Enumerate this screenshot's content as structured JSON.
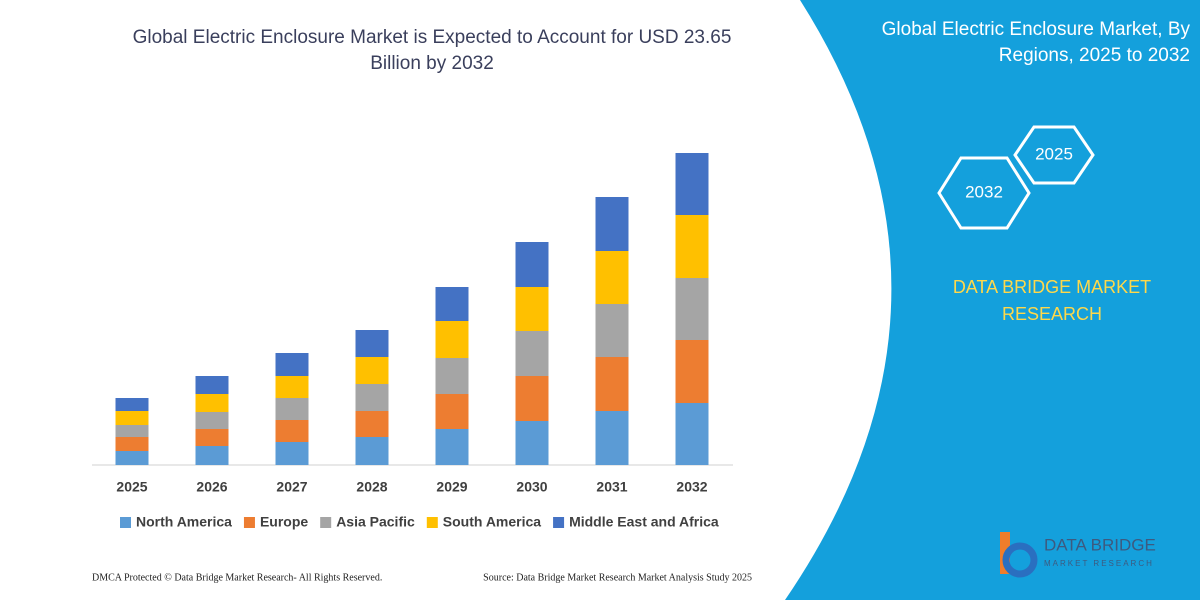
{
  "chart_data": {
    "type": "bar",
    "stacked": true,
    "title": [
      "Global Electric Enclosure Market is Expected to Account for USD 23.65",
      "Billion by 2032"
    ],
    "categories": [
      "2025",
      "2026",
      "2027",
      "2028",
      "2029",
      "2030",
      "2031",
      "2032"
    ],
    "series": [
      {
        "name": "North America",
        "color": "#5b9bd5",
        "values": [
          14,
          19,
          23,
          28,
          36,
          44,
          54,
          62
        ]
      },
      {
        "name": "Europe",
        "color": "#ed7d31",
        "values": [
          14,
          17,
          22,
          26,
          35,
          45,
          54,
          63
        ]
      },
      {
        "name": "Asia Pacific",
        "color": "#a5a5a5",
        "values": [
          12,
          17,
          22,
          27,
          36,
          45,
          53,
          62
        ]
      },
      {
        "name": "South America",
        "color": "#ffc000",
        "values": [
          14,
          18,
          22,
          27,
          37,
          44,
          53,
          63
        ]
      },
      {
        "name": "Middle East and Africa",
        "color": "#4472c4",
        "values": [
          13,
          18,
          23,
          27,
          34,
          45,
          54,
          62
        ]
      }
    ]
  },
  "panel": {
    "title": [
      "Global Electric Enclosure Market, By",
      "Regions, 2025 to 2032"
    ],
    "hexagons": [
      "2025",
      "2032"
    ],
    "brand": [
      "DATA BRIDGE MARKET",
      "RESEARCH"
    ]
  },
  "logo": {
    "name": "DATA BRIDGE",
    "tagline": "MARKET RESEARCH"
  },
  "footer": {
    "left": "DMCA Protected © Data Bridge Market Research-  All Rights Reserved.",
    "right": "Source: Data Bridge Market Research  Market Analysis Study 2025"
  }
}
